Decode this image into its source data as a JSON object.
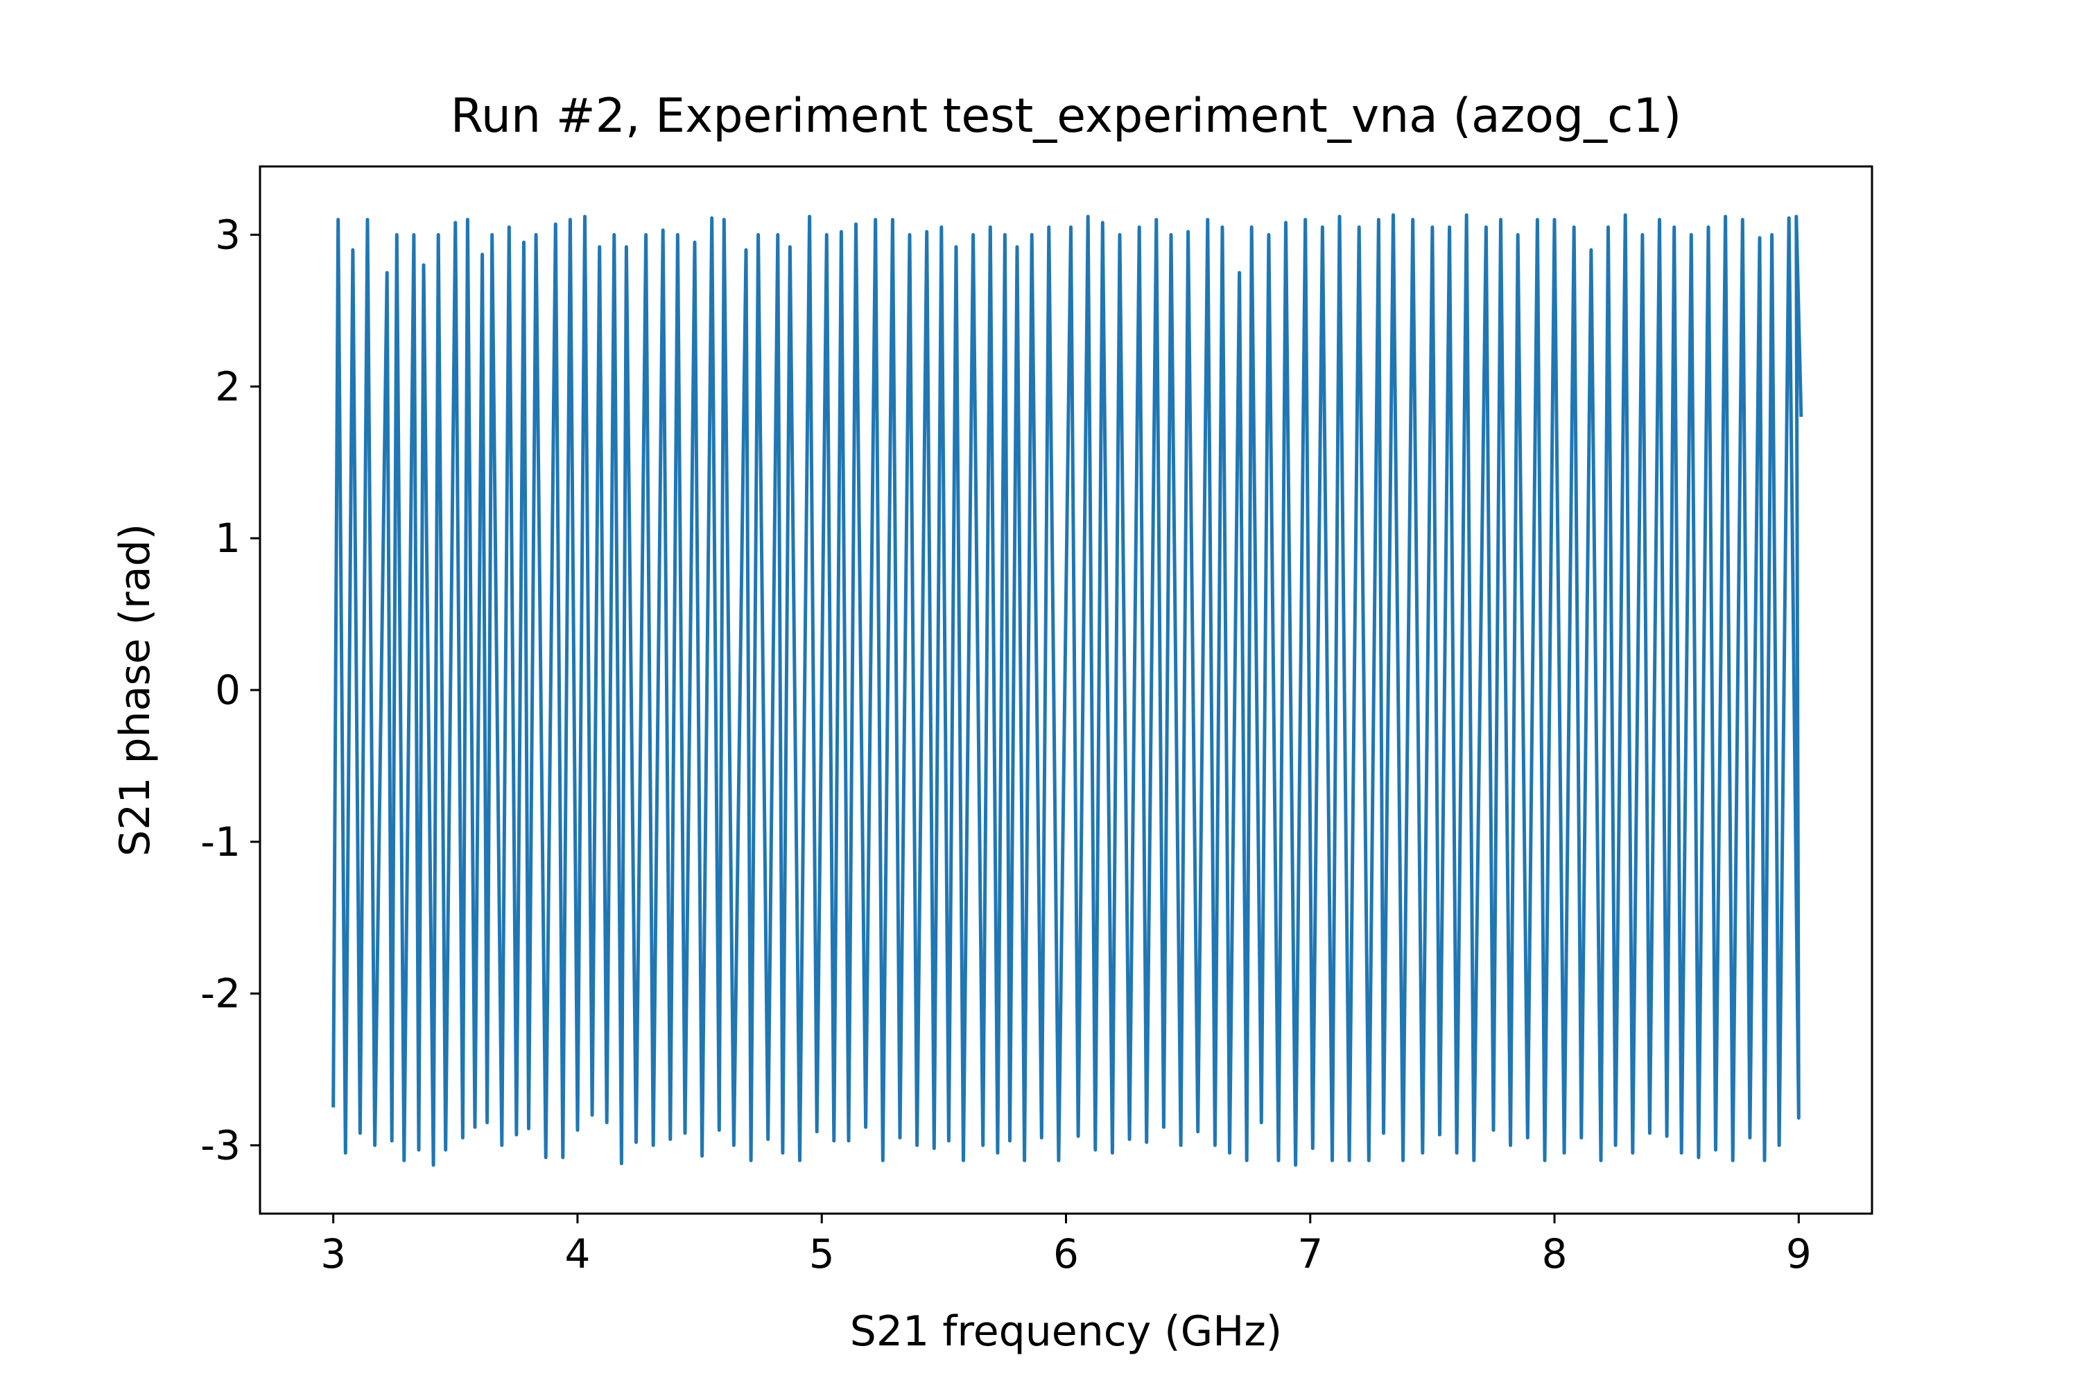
{
  "chart_data": {
    "type": "line",
    "title": "Run #2, Experiment test_experiment_vna (azog_c1)",
    "xlabel": "S21 frequency (GHz)",
    "ylabel": "S21 phase (rad)",
    "xlim": [
      2.7,
      9.3
    ],
    "ylim": [
      -3.45,
      3.45
    ],
    "grid": false,
    "line_color": "#1f77b4",
    "x_ticks": [
      {
        "value": 3,
        "label": "3"
      },
      {
        "value": 4,
        "label": "4"
      },
      {
        "value": 5,
        "label": "5"
      },
      {
        "value": 6,
        "label": "6"
      },
      {
        "value": 7,
        "label": "7"
      },
      {
        "value": 8,
        "label": "8"
      },
      {
        "value": 9,
        "label": "9"
      }
    ],
    "y_ticks": [
      {
        "value": -3,
        "label": "-3"
      },
      {
        "value": -2,
        "label": "-2"
      },
      {
        "value": -1,
        "label": "-1"
      },
      {
        "value": 0,
        "label": "0"
      },
      {
        "value": 1,
        "label": "1"
      },
      {
        "value": 2,
        "label": "2"
      },
      {
        "value": 3,
        "label": "3"
      }
    ],
    "series": [
      {
        "x": [
          3.0,
          3.0,
          3.01,
          3.02,
          3.02,
          3.03,
          3.04,
          3.05,
          3.06,
          3.07,
          3.08,
          3.09,
          3.1,
          3.11,
          3.12,
          3.13,
          3.14,
          3.15,
          3.16,
          3.17,
          3.18,
          3.19,
          3.2,
          3.21,
          3.22,
          3.23,
          3.24,
          3.25,
          3.26,
          3.27,
          3.28,
          3.29,
          3.3,
          3.31,
          3.32,
          3.33,
          3.34,
          3.35,
          3.36,
          3.37,
          3.38,
          3.39,
          3.4,
          3.41,
          3.42,
          3.43,
          3.44,
          3.45,
          3.46,
          3.47,
          3.48,
          3.49,
          3.5,
          3.51,
          3.52,
          3.53,
          3.54,
          3.55,
          3.56,
          3.57,
          3.58,
          3.59,
          3.6,
          3.61,
          3.62,
          3.63,
          3.64,
          3.65,
          3.66,
          3.67,
          3.68,
          3.69,
          3.7,
          3.71,
          3.72,
          3.73,
          3.74,
          3.75,
          3.76,
          3.77,
          3.78,
          3.79,
          3.8,
          3.81,
          3.82,
          3.83,
          3.84,
          3.85,
          3.86,
          3.87,
          3.88,
          3.89,
          3.9,
          3.91,
          3.92,
          3.93,
          3.94,
          3.95,
          3.96,
          3.97,
          3.98,
          3.99,
          4.0,
          4.01,
          4.02,
          4.03,
          4.04,
          4.05,
          4.06,
          4.07,
          4.08,
          4.09,
          4.1,
          4.11,
          4.12,
          4.13,
          4.14,
          4.15,
          4.16,
          4.17,
          4.18,
          4.19,
          4.2,
          4.21,
          4.22,
          4.23,
          4.24,
          4.25,
          4.26,
          4.27,
          4.28,
          4.29,
          4.3,
          4.31,
          4.32,
          4.33,
          4.34,
          4.35,
          4.36,
          4.37,
          4.38,
          4.39,
          4.4,
          4.41,
          4.42,
          4.43,
          4.44,
          4.45,
          4.46,
          4.47,
          4.48,
          4.49,
          4.5,
          4.51,
          4.52,
          4.53,
          4.54,
          4.55,
          4.56,
          4.57,
          4.58,
          4.59,
          4.6,
          4.61,
          4.62,
          4.63,
          4.64,
          4.65,
          4.66,
          4.67,
          4.68,
          4.69,
          4.7,
          4.71,
          4.72,
          4.73,
          4.74,
          4.75,
          4.76,
          4.77,
          4.78,
          4.79,
          4.8,
          4.81,
          4.82,
          4.83,
          4.84,
          4.85,
          4.86,
          4.87,
          4.88,
          4.89,
          4.9,
          4.91,
          4.92,
          4.93,
          4.94,
          4.95,
          4.96,
          4.97,
          4.98,
          4.99,
          5.0,
          5.01,
          5.02,
          5.03,
          5.04,
          5.05,
          5.06,
          5.07,
          5.08,
          5.09,
          5.1,
          5.11,
          5.12,
          5.13,
          5.14,
          5.15,
          5.16,
          5.17,
          5.18,
          5.19,
          5.2,
          5.21,
          5.22,
          5.23,
          5.24,
          5.25,
          5.26,
          5.27,
          5.28,
          5.29,
          5.3,
          5.31,
          5.32,
          5.33,
          5.34,
          5.35,
          5.36,
          5.37,
          5.38,
          5.39,
          5.4,
          5.41,
          5.42,
          5.43,
          5.44,
          5.45,
          5.46,
          5.47,
          5.48,
          5.49,
          5.5,
          5.51,
          5.52,
          5.53,
          5.54,
          5.55,
          5.56,
          5.57,
          5.58,
          5.59,
          5.6,
          5.61,
          5.62,
          5.63,
          5.64,
          5.65,
          5.66,
          5.67,
          5.68,
          5.69,
          5.7,
          5.71,
          5.72,
          5.73,
          5.74,
          5.75,
          5.76,
          5.77,
          5.78,
          5.79,
          5.8,
          5.81,
          5.82,
          5.83,
          5.84,
          5.85,
          5.86,
          5.87,
          5.88,
          5.89,
          5.9,
          5.91,
          5.92,
          5.93,
          5.94,
          5.95,
          5.96,
          5.97,
          5.98,
          5.99,
          6.0,
          6.01,
          6.02,
          6.03,
          6.04,
          6.05,
          6.06,
          6.07,
          6.08,
          6.09,
          6.1,
          6.11,
          6.12,
          6.13,
          6.14,
          6.15,
          6.16,
          6.17,
          6.18,
          6.19,
          6.2,
          6.21,
          6.22,
          6.23,
          6.24,
          6.25,
          6.26,
          6.27,
          6.28,
          6.29,
          6.3,
          6.31,
          6.32,
          6.33,
          6.34,
          6.35,
          6.36,
          6.37,
          6.38,
          6.39,
          6.4,
          6.41,
          6.42,
          6.43,
          6.44,
          6.45,
          6.46,
          6.47,
          6.48,
          6.49,
          6.5,
          6.51,
          6.52,
          6.53,
          6.54,
          6.55,
          6.56,
          6.57,
          6.58,
          6.59,
          6.6,
          6.61,
          6.62,
          6.63,
          6.64,
          6.65,
          6.66,
          6.67,
          6.68,
          6.69,
          6.7,
          6.71,
          6.72,
          6.73,
          6.74,
          6.75,
          6.76,
          6.77,
          6.78,
          6.79,
          6.8,
          6.81,
          6.82,
          6.83,
          6.84,
          6.85,
          6.86,
          6.87,
          6.88,
          6.89,
          6.9,
          6.91,
          6.92,
          6.93,
          6.94,
          6.95,
          6.96,
          6.97,
          6.98,
          6.99,
          7.0,
          7.01,
          7.02,
          7.03,
          7.04,
          7.05,
          7.06,
          7.07,
          7.08,
          7.09,
          7.1,
          7.11,
          7.12,
          7.13,
          7.14,
          7.15,
          7.16,
          7.17,
          7.18,
          7.19,
          7.2,
          7.21,
          7.22,
          7.23,
          7.24,
          7.25,
          7.26,
          7.27,
          7.28,
          7.29,
          7.3,
          7.31,
          7.32,
          7.33,
          7.34,
          7.35,
          7.36,
          7.37,
          7.38,
          7.39,
          7.4,
          7.41,
          7.42,
          7.43,
          7.44,
          7.45,
          7.46,
          7.47,
          7.48,
          7.49,
          7.5,
          7.51,
          7.52,
          7.53,
          7.54,
          7.55,
          7.56,
          7.57,
          7.58,
          7.59,
          7.6,
          7.61,
          7.62,
          7.63,
          7.64,
          7.65,
          7.66,
          7.67,
          7.68,
          7.69,
          7.7,
          7.71,
          7.72,
          7.73,
          7.74,
          7.75,
          7.76,
          7.77,
          7.78,
          7.79,
          7.8,
          7.81,
          7.82,
          7.83,
          7.84,
          7.85,
          7.86,
          7.87,
          7.88,
          7.89,
          7.9,
          7.91,
          7.92,
          7.93,
          7.94,
          7.95,
          7.96,
          7.97,
          7.98,
          7.99,
          8.0,
          8.01,
          8.02,
          8.03,
          8.04,
          8.05,
          8.06,
          8.07,
          8.08,
          8.09,
          8.1,
          8.11,
          8.12,
          8.13,
          8.14,
          8.15,
          8.16,
          8.17,
          8.18,
          8.19,
          8.2,
          8.21,
          8.22,
          8.23,
          8.24,
          8.25,
          8.26,
          8.27,
          8.28,
          8.29,
          8.3,
          8.31,
          8.32,
          8.33,
          8.34,
          8.35,
          8.36,
          8.37,
          8.38,
          8.39,
          8.4,
          8.41,
          8.42,
          8.43,
          8.44,
          8.45,
          8.46,
          8.47,
          8.48,
          8.49,
          8.5,
          8.51,
          8.52,
          8.53,
          8.54,
          8.55,
          8.56,
          8.57,
          8.58,
          8.59,
          8.6,
          8.61,
          8.62,
          8.63,
          8.64,
          8.65,
          8.66,
          8.67,
          8.68,
          8.69,
          8.7,
          8.71,
          8.72,
          8.73,
          8.74,
          8.75,
          8.76,
          8.77,
          8.78,
          8.79,
          8.8,
          8.81,
          8.82,
          8.83,
          8.84,
          8.85,
          8.86,
          8.87,
          8.88,
          8.89,
          8.9,
          8.91,
          8.92,
          8.93,
          8.94,
          8.95,
          8.96,
          8.97,
          8.98,
          8.99,
          9.0,
          9.01
        ],
        "y_description_omitted": true
      }
    ],
    "trace": {
      "x_start": 3.0,
      "x_end": 9.01,
      "peaks_x": [
        3.02,
        3.08,
        3.14,
        3.22,
        3.26,
        3.33,
        3.37,
        3.43,
        3.5,
        3.55,
        3.61,
        3.65,
        3.72,
        3.78,
        3.83,
        3.91,
        3.97,
        4.03,
        4.09,
        4.15,
        4.2,
        4.28,
        4.35,
        4.41,
        4.48,
        4.55,
        4.6,
        4.69,
        4.74,
        4.82,
        4.87,
        4.95,
        5.02,
        5.08,
        5.14,
        5.22,
        5.29,
        5.36,
        5.43,
        5.49,
        5.55,
        5.62,
        5.69,
        5.75,
        5.8,
        5.86,
        5.93,
        6.02,
        6.09,
        6.15,
        6.22,
        6.3,
        6.37,
        6.43,
        6.5,
        6.58,
        6.64,
        6.71,
        6.76,
        6.83,
        6.9,
        6.98,
        7.05,
        7.12,
        7.2,
        7.28,
        7.34,
        7.42,
        7.5,
        7.57,
        7.64,
        7.72,
        7.78,
        7.85,
        7.93,
        8.0,
        8.08,
        8.15,
        8.22,
        8.29,
        8.36,
        8.43,
        8.49,
        8.56,
        8.63,
        8.7,
        8.77,
        8.84,
        8.89,
        8.96,
        8.99
      ],
      "peaks_y": [
        3.1,
        2.9,
        3.1,
        2.75,
        3.0,
        3.0,
        2.8,
        3.0,
        3.08,
        3.1,
        2.87,
        3.0,
        3.05,
        2.95,
        3.0,
        3.07,
        3.1,
        3.12,
        2.92,
        3.0,
        2.92,
        3.0,
        3.03,
        3.0,
        2.95,
        3.11,
        3.1,
        2.9,
        3.0,
        3.0,
        2.92,
        3.12,
        3.0,
        3.02,
        3.07,
        3.1,
        3.1,
        3.0,
        3.02,
        3.05,
        2.92,
        3.0,
        3.05,
        3.0,
        2.92,
        3.0,
        3.05,
        3.05,
        3.12,
        3.08,
        3.0,
        3.05,
        3.1,
        3.0,
        3.02,
        3.1,
        3.05,
        2.75,
        3.05,
        3.0,
        3.08,
        3.1,
        3.05,
        3.12,
        3.05,
        3.1,
        3.13,
        3.1,
        3.05,
        3.05,
        3.13,
        3.05,
        3.1,
        3.0,
        3.1,
        3.1,
        3.05,
        2.9,
        3.05,
        3.13,
        3.0,
        3.1,
        3.05,
        3.0,
        3.05,
        3.12,
        3.1,
        2.98,
        3.0,
        3.11,
        3.12
      ],
      "troughs_x": [
        3.0,
        3.05,
        3.11,
        3.17,
        3.24,
        3.29,
        3.35,
        3.41,
        3.46,
        3.53,
        3.58,
        3.63,
        3.69,
        3.75,
        3.8,
        3.87,
        3.94,
        4.0,
        4.06,
        4.12,
        4.18,
        4.24,
        4.31,
        4.38,
        4.44,
        4.51,
        4.58,
        4.64,
        4.71,
        4.78,
        4.84,
        4.91,
        4.98,
        5.05,
        5.11,
        5.18,
        5.25,
        5.32,
        5.39,
        5.46,
        5.52,
        5.58,
        5.66,
        5.72,
        5.77,
        5.83,
        5.9,
        5.97,
        6.05,
        6.12,
        6.19,
        6.26,
        6.33,
        6.4,
        6.47,
        6.54,
        6.61,
        6.67,
        6.74,
        6.8,
        6.87,
        6.94,
        7.01,
        7.09,
        7.16,
        7.24,
        7.3,
        7.38,
        7.46,
        7.53,
        7.6,
        7.67,
        7.75,
        7.82,
        7.89,
        7.96,
        8.04,
        8.11,
        8.19,
        8.25,
        8.32,
        8.39,
        8.46,
        8.52,
        8.59,
        8.66,
        8.73,
        8.8,
        8.86,
        8.92,
        9.0
      ],
      "troughs_y": [
        -2.75,
        -3.05,
        -2.92,
        -3.0,
        -2.97,
        -3.1,
        -3.03,
        -3.13,
        -3.03,
        -2.95,
        -2.88,
        -2.85,
        -3.0,
        -2.93,
        -2.89,
        -3.08,
        -3.08,
        -2.9,
        -2.8,
        -2.85,
        -3.12,
        -2.98,
        -3.0,
        -2.96,
        -2.92,
        -3.07,
        -2.9,
        -3.0,
        -3.1,
        -2.96,
        -3.05,
        -3.1,
        -2.91,
        -2.97,
        -2.97,
        -2.88,
        -3.1,
        -2.95,
        -3.0,
        -3.02,
        -2.97,
        -3.1,
        -3.0,
        -3.05,
        -2.97,
        -3.1,
        -2.95,
        -3.1,
        -2.94,
        -3.03,
        -3.05,
        -2.96,
        -2.98,
        -2.88,
        -3.0,
        -2.91,
        -3.0,
        -3.05,
        -3.1,
        -2.85,
        -3.1,
        -3.13,
        -3.02,
        -3.1,
        -3.1,
        -3.1,
        -2.92,
        -3.1,
        -3.05,
        -2.93,
        -3.05,
        -3.1,
        -2.9,
        -3.0,
        -2.95,
        -3.1,
        -3.05,
        -2.95,
        -3.1,
        -3.0,
        -3.05,
        -2.92,
        -2.94,
        -3.05,
        -3.08,
        -3.03,
        -3.1,
        -2.95,
        -3.1,
        -3.0,
        -2.82
      ]
    }
  }
}
